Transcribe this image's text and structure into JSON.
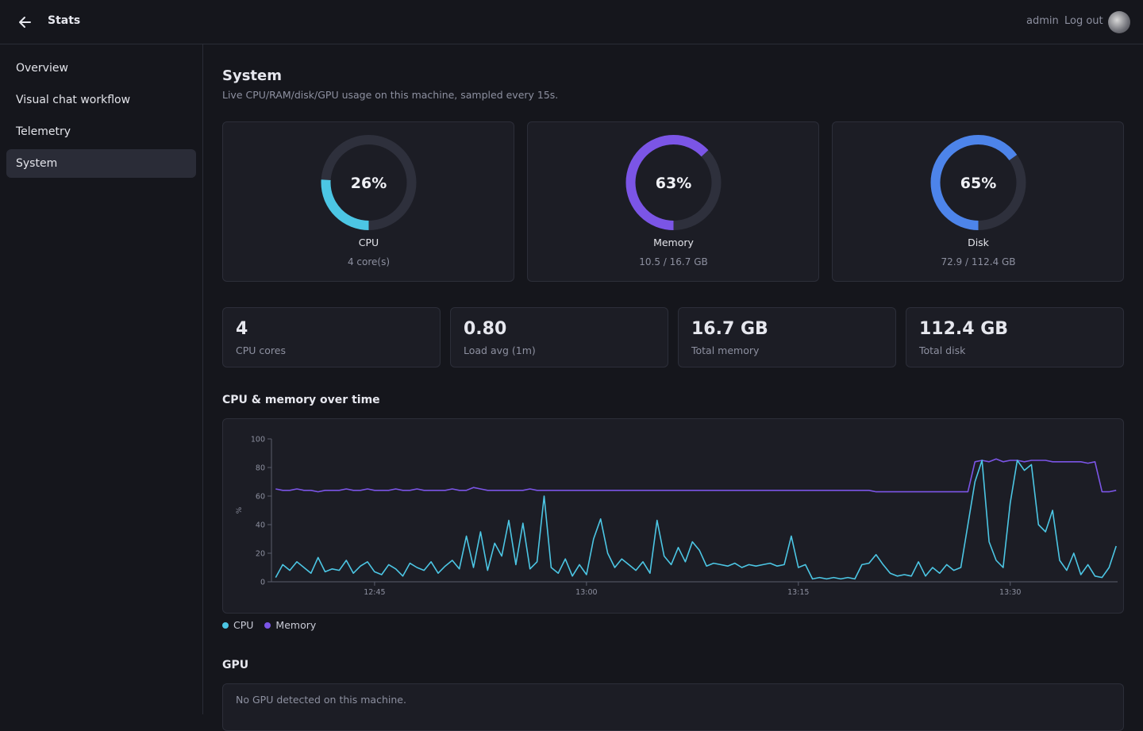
{
  "header": {
    "title": "Stats",
    "user": "admin",
    "logout": "Log out"
  },
  "nav": {
    "items": [
      "Overview",
      "Visual chat workflow",
      "Telemetry",
      "System"
    ],
    "active": 3
  },
  "page": {
    "title": "System",
    "subtitle": "Live CPU/RAM/disk/GPU usage on this machine, sampled every 15s."
  },
  "gauges": [
    {
      "label": "CPU",
      "value": 26,
      "value_label": "26%",
      "detail": "4 core(s)",
      "color": "#4cc6e4"
    },
    {
      "label": "Memory",
      "value": 63,
      "value_label": "63%",
      "detail": "10.5 / 16.7 GB",
      "color": "#7b55e6"
    },
    {
      "label": "Disk",
      "value": 65,
      "value_label": "65%",
      "detail": "72.9 / 112.4 GB",
      "color": "#4d84ea"
    }
  ],
  "stats": [
    {
      "value": "4",
      "label": "CPU cores"
    },
    {
      "value": "0.80",
      "label": "Load avg (1m)"
    },
    {
      "value": "16.7 GB",
      "label": "Total memory"
    },
    {
      "value": "112.4 GB",
      "label": "Total disk"
    }
  ],
  "chart_data": {
    "type": "line",
    "title": "CPU & memory over time",
    "ylabel": "%",
    "ylim": [
      0,
      100
    ],
    "yticks": [
      0,
      20,
      40,
      60,
      80,
      100
    ],
    "xlim": [
      757.7,
      817.6
    ],
    "xticks": [
      {
        "value": 765,
        "label": "12:45"
      },
      {
        "value": 780,
        "label": "13:00"
      },
      {
        "value": 795,
        "label": "13:15"
      },
      {
        "value": 810,
        "label": "13:30"
      }
    ],
    "x": [
      758,
      758.5,
      759,
      759.5,
      760,
      760.5,
      761,
      761.5,
      762,
      762.5,
      763,
      763.5,
      764,
      764.5,
      765,
      765.5,
      766,
      766.5,
      767,
      767.5,
      768,
      768.5,
      769,
      769.5,
      770,
      770.5,
      771,
      771.5,
      772,
      772.5,
      773,
      773.5,
      774,
      774.5,
      775,
      775.5,
      776,
      776.5,
      777,
      777.5,
      778,
      778.5,
      779,
      779.5,
      780,
      780.5,
      781,
      781.5,
      782,
      782.5,
      783,
      783.5,
      784,
      784.5,
      785,
      785.5,
      786,
      786.5,
      787,
      787.5,
      788,
      788.5,
      789,
      789.5,
      790,
      790.5,
      791,
      791.5,
      792,
      792.5,
      793,
      793.5,
      794,
      794.5,
      795,
      795.5,
      796,
      796.5,
      797,
      797.5,
      798,
      798.5,
      799,
      799.5,
      800,
      800.5,
      801,
      801.5,
      802,
      802.5,
      803,
      803.5,
      804,
      804.5,
      805,
      805.5,
      806,
      806.5,
      807,
      807.5,
      808,
      808.5,
      809,
      809.5,
      810,
      810.5,
      811,
      811.5,
      812,
      812.5,
      813,
      813.5,
      814,
      814.5,
      815,
      815.5,
      816,
      816.5,
      817,
      817.5
    ],
    "series": [
      {
        "name": "CPU",
        "color": "#4cc6e4",
        "values": [
          3,
          12,
          8,
          14,
          10,
          6,
          17,
          7,
          9,
          8,
          15,
          6,
          11,
          14,
          7,
          5,
          12,
          9,
          4,
          13,
          10,
          8,
          14,
          6,
          11,
          15,
          9,
          32,
          10,
          35,
          8,
          27,
          18,
          43,
          12,
          41,
          9,
          14,
          60,
          10,
          6,
          16,
          4,
          12,
          5,
          30,
          44,
          20,
          10,
          16,
          12,
          8,
          14,
          6,
          43,
          18,
          12,
          24,
          14,
          28,
          22,
          11,
          13,
          12,
          11,
          13,
          10,
          12,
          11,
          12,
          13,
          11,
          12,
          32,
          10,
          12,
          2,
          3,
          2,
          3,
          2,
          3,
          2,
          12,
          13,
          19,
          12,
          6,
          4,
          5,
          4,
          14,
          4,
          10,
          6,
          12,
          8,
          10,
          40,
          70,
          85,
          28,
          15,
          10,
          55,
          85,
          78,
          82,
          40,
          35,
          50,
          15,
          8,
          20,
          5,
          12,
          4,
          3,
          10,
          25
        ]
      },
      {
        "name": "Memory",
        "color": "#7b55e6",
        "values": [
          65,
          64,
          64,
          65,
          64,
          64,
          63,
          64,
          64,
          64,
          65,
          64,
          64,
          65,
          64,
          64,
          64,
          65,
          64,
          64,
          65,
          64,
          64,
          64,
          64,
          65,
          64,
          64,
          66,
          65,
          64,
          64,
          64,
          64,
          64,
          64,
          65,
          64,
          64,
          64,
          64,
          64,
          64,
          64,
          64,
          64,
          64,
          64,
          64,
          64,
          64,
          64,
          64,
          64,
          64,
          64,
          64,
          64,
          64,
          64,
          64,
          64,
          64,
          64,
          64,
          64,
          64,
          64,
          64,
          64,
          64,
          64,
          64,
          64,
          64,
          64,
          64,
          64,
          64,
          64,
          64,
          64,
          64,
          64,
          64,
          63,
          63,
          63,
          63,
          63,
          63,
          63,
          63,
          63,
          63,
          63,
          63,
          63,
          63,
          84,
          85,
          84,
          86,
          84,
          85,
          85,
          84,
          85,
          85,
          85,
          84,
          84,
          84,
          84,
          84,
          83,
          84,
          63,
          63,
          64
        ]
      }
    ]
  },
  "gpu": {
    "title": "GPU",
    "message": "No GPU detected on this machine."
  }
}
